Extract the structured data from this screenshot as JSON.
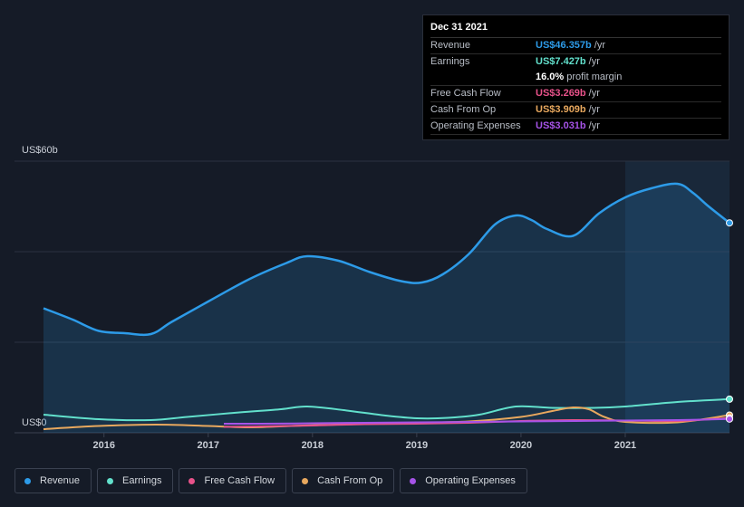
{
  "tooltip": {
    "date": "Dec 31 2021",
    "rows": [
      {
        "label": "Revenue",
        "value": "US$46.357b",
        "unit": "/yr",
        "color": "#2d9be8"
      },
      {
        "label": "Earnings",
        "value": "US$7.427b",
        "unit": "/yr",
        "color": "#62e0cc"
      },
      {
        "label": "",
        "value": "16.0%",
        "unit": "profit margin",
        "color": "#ffffff"
      },
      {
        "label": "Free Cash Flow",
        "value": "US$3.269b",
        "unit": "/yr",
        "color": "#e8528a"
      },
      {
        "label": "Cash From Op",
        "value": "US$3.909b",
        "unit": "/yr",
        "color": "#e8a85e"
      },
      {
        "label": "Operating Expenses",
        "value": "US$3.031b",
        "unit": "/yr",
        "color": "#a653e8"
      }
    ]
  },
  "legend": [
    {
      "label": "Revenue",
      "color": "#2d9be8"
    },
    {
      "label": "Earnings",
      "color": "#62e0cc"
    },
    {
      "label": "Free Cash Flow",
      "color": "#e8528a"
    },
    {
      "label": "Cash From Op",
      "color": "#e8a85e"
    },
    {
      "label": "Operating Expenses",
      "color": "#a653e8"
    }
  ],
  "chart_data": {
    "type": "area",
    "title": "",
    "xlabel": "",
    "ylabel": "",
    "y_top_label": "US$60b",
    "y_bottom_label": "US$0",
    "ylim": [
      0,
      60
    ],
    "xlim": [
      2015.42,
      2022.0
    ],
    "x_ticks": [
      2016,
      2017,
      2018,
      2019,
      2020,
      2021
    ],
    "x_tick_labels": [
      "2016",
      "2017",
      "2018",
      "2019",
      "2020",
      "2021"
    ],
    "highlight_from": 2021.0,
    "series": [
      {
        "name": "Revenue",
        "color": "#2d9be8",
        "fill": true,
        "x": [
          2015.42,
          2015.7,
          2015.95,
          2016.2,
          2016.45,
          2016.65,
          2017.0,
          2017.4,
          2017.75,
          2017.95,
          2018.25,
          2018.55,
          2018.85,
          2019.05,
          2019.25,
          2019.5,
          2019.75,
          2019.95,
          2020.1,
          2020.25,
          2020.5,
          2020.75,
          2021.0,
          2021.25,
          2021.5,
          2021.65,
          2021.8,
          2022.0
        ],
        "values": [
          27.5,
          25.0,
          22.5,
          22.0,
          21.8,
          24.5,
          29.0,
          34.0,
          37.5,
          39.0,
          38.0,
          35.5,
          33.5,
          33.2,
          35.0,
          39.5,
          46.0,
          48.0,
          47.0,
          45.0,
          43.5,
          48.5,
          52.0,
          54.0,
          55.0,
          53.0,
          50.0,
          46.357
        ]
      },
      {
        "name": "Earnings",
        "color": "#62e0cc",
        "fill": false,
        "x": [
          2015.42,
          2015.95,
          2016.45,
          2016.8,
          2017.3,
          2017.7,
          2017.95,
          2018.3,
          2018.7,
          2019.0,
          2019.3,
          2019.6,
          2019.95,
          2020.3,
          2020.7,
          2021.0,
          2021.5,
          2022.0
        ],
        "values": [
          4.0,
          3.0,
          2.8,
          3.5,
          4.5,
          5.2,
          5.8,
          5.0,
          3.8,
          3.2,
          3.3,
          4.0,
          5.8,
          5.5,
          5.5,
          5.8,
          6.8,
          7.427
        ]
      },
      {
        "name": "Cash From Op",
        "color": "#e8a85e",
        "fill": false,
        "x": [
          2015.42,
          2015.95,
          2016.5,
          2017.0,
          2017.4,
          2017.9,
          2018.4,
          2019.0,
          2019.5,
          2020.0,
          2020.3,
          2020.5,
          2020.65,
          2020.8,
          2021.0,
          2021.5,
          2022.0
        ],
        "values": [
          0.8,
          1.5,
          1.8,
          1.5,
          1.2,
          1.6,
          1.9,
          2.2,
          2.5,
          3.5,
          4.8,
          5.6,
          5.2,
          3.5,
          2.4,
          2.3,
          3.909
        ]
      },
      {
        "name": "Free Cash Flow",
        "color": "#e8528a",
        "fill": false,
        "x": [
          2017.15,
          2017.5,
          2018.0,
          2018.5,
          2019.0,
          2019.5,
          2020.0,
          2020.5,
          2021.0,
          2021.5,
          2022.0
        ],
        "values": [
          1.3,
          1.4,
          1.6,
          1.9,
          2.0,
          2.2,
          2.6,
          2.8,
          2.7,
          2.6,
          3.269
        ]
      },
      {
        "name": "Operating Expenses",
        "color": "#a653e8",
        "fill": false,
        "x": [
          2017.15,
          2017.5,
          2018.0,
          2018.5,
          2019.0,
          2019.5,
          2020.0,
          2020.5,
          2021.0,
          2021.5,
          2022.0
        ],
        "values": [
          2.0,
          2.0,
          2.1,
          2.2,
          2.3,
          2.4,
          2.5,
          2.6,
          2.7,
          2.8,
          3.031
        ]
      }
    ]
  }
}
